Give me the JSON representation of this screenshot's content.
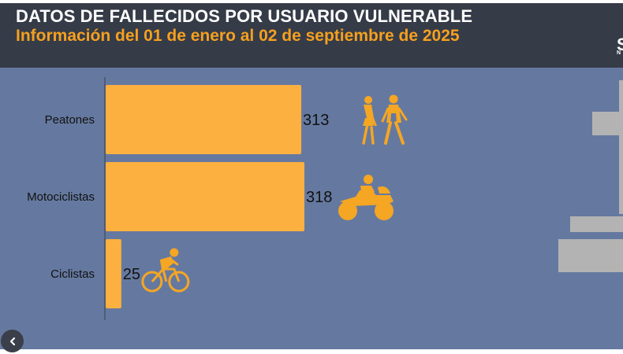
{
  "header": {
    "title": "DATOS DE FALLECIDOS POR USUARIO VULNERABLE",
    "subtitle": "Información del 01 de enero al 02 de septiembre de 2025",
    "logo_letter": "S",
    "logo_small": "N"
  },
  "colors": {
    "bar": "#fbb040",
    "icon": "#f5a623",
    "panel": "#6579a0",
    "header": "#353b47",
    "subtitle": "#f5a020"
  },
  "icons": [
    "pedestrians-icon",
    "motorcycle-icon",
    "bicycle-icon",
    "chevron-left-icon"
  ],
  "chart_data": {
    "type": "bar",
    "orientation": "horizontal",
    "title": "DATOS DE FALLECIDOS POR USUARIO VULNERABLE",
    "subtitle": "Información del 01 de enero al 02 de septiembre de 2025",
    "categories": [
      "Peatones",
      "Motociclistas",
      "Ciclistas"
    ],
    "values": [
      313,
      318,
      25
    ],
    "xlim": [
      0,
      318
    ],
    "xlabel": "",
    "ylabel": "",
    "grid": false,
    "legend": "none"
  }
}
